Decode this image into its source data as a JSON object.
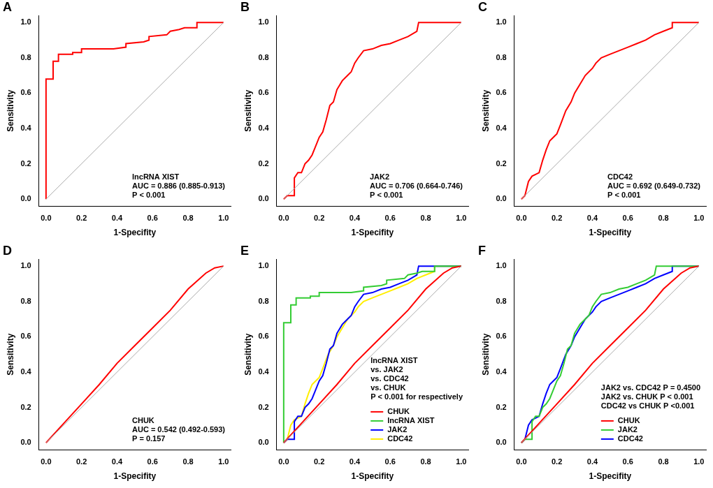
{
  "chart_data": [
    {
      "type": "line",
      "title": "A",
      "x_label": "1-Specifity",
      "y_label": "Sensitivity",
      "xlim": [
        -0.04,
        1.04
      ],
      "ylim": [
        -0.04,
        1.04
      ],
      "xticks": [
        {
          "value": 0,
          "label": "0.0"
        },
        0.2,
        0.4,
        0.6,
        0.8,
        {
          "value": 1,
          "label": "1.0"
        }
      ],
      "yticks": [
        {
          "value": 0,
          "label": "0.0"
        },
        0.2,
        0.4,
        0.6,
        0.8,
        {
          "value": 1,
          "label": "1.0"
        }
      ],
      "grid": false,
      "reference_line": {
        "x": [
          0,
          1
        ],
        "values": [
          0,
          1
        ],
        "color": "#aaaaaa"
      },
      "x": [
        0,
        0,
        0.04,
        0.04,
        0.07,
        0.07,
        0.15,
        0.15,
        0.2,
        0.2,
        0.38,
        0.45,
        0.45,
        0.55,
        0.58,
        0.58,
        0.68,
        0.7,
        0.75,
        0.78,
        0.85,
        0.85,
        1
      ],
      "values": [
        0,
        0.68,
        0.68,
        0.78,
        0.78,
        0.82,
        0.82,
        0.83,
        0.83,
        0.85,
        0.85,
        0.86,
        0.88,
        0.89,
        0.9,
        0.92,
        0.93,
        0.95,
        0.96,
        0.97,
        0.97,
        1,
        1
      ],
      "color": "#ff0000",
      "annotations": [
        "lncRNA XIST",
        "AUC = 0.886 (0.885-0.913)",
        "P < 0.001"
      ]
    },
    {
      "type": "line",
      "title": "B",
      "x_label": "1-Specifity",
      "y_label": "Sensitivity",
      "xlim": [
        -0.04,
        1.04
      ],
      "ylim": [
        -0.04,
        1.04
      ],
      "xticks": [
        {
          "value": 0,
          "label": "0.0"
        },
        0.2,
        0.4,
        0.6,
        0.8,
        {
          "value": 1,
          "label": "1.0"
        }
      ],
      "yticks": [
        {
          "value": 0,
          "label": "0.0"
        },
        0.2,
        0.4,
        0.6,
        0.8,
        {
          "value": 1,
          "label": "1.0"
        }
      ],
      "grid": false,
      "reference_line": {
        "x": [
          0,
          1
        ],
        "values": [
          0,
          1
        ],
        "color": "#aaaaaa"
      },
      "x": [
        0,
        0.02,
        0.06,
        0.06,
        0.08,
        0.1,
        0.12,
        0.14,
        0.16,
        0.18,
        0.2,
        0.22,
        0.24,
        0.26,
        0.28,
        0.3,
        0.33,
        0.36,
        0.38,
        0.4,
        0.42,
        0.45,
        0.5,
        0.55,
        0.6,
        0.65,
        0.7,
        0.75,
        0.76,
        1
      ],
      "values": [
        0,
        0.02,
        0.02,
        0.12,
        0.15,
        0.15,
        0.2,
        0.22,
        0.25,
        0.3,
        0.35,
        0.38,
        0.45,
        0.53,
        0.55,
        0.62,
        0.67,
        0.7,
        0.72,
        0.77,
        0.8,
        0.84,
        0.85,
        0.87,
        0.88,
        0.9,
        0.92,
        0.95,
        1,
        1
      ],
      "color": "#ff0000",
      "annotations": [
        "JAK2",
        "AUC = 0.706 (0.664-0.746)",
        "P < 0.001"
      ]
    },
    {
      "type": "line",
      "title": "C",
      "x_label": "1-Specifity",
      "y_label": "Sensitivity",
      "xlim": [
        -0.04,
        1.04
      ],
      "ylim": [
        -0.04,
        1.04
      ],
      "xticks": [
        {
          "value": 0,
          "label": "0.0"
        },
        0.2,
        0.4,
        0.6,
        0.8,
        {
          "value": 1,
          "label": "1.0"
        }
      ],
      "yticks": [
        {
          "value": 0,
          "label": "0.0"
        },
        0.2,
        0.4,
        0.6,
        0.8,
        {
          "value": 1,
          "label": "1.0"
        }
      ],
      "grid": false,
      "reference_line": {
        "x": [
          0,
          1
        ],
        "values": [
          0,
          1
        ],
        "color": "#aaaaaa"
      },
      "x": [
        0,
        0.02,
        0.04,
        0.06,
        0.1,
        0.12,
        0.14,
        0.16,
        0.18,
        0.2,
        0.22,
        0.25,
        0.28,
        0.3,
        0.33,
        0.36,
        0.4,
        0.42,
        0.45,
        0.5,
        0.55,
        0.6,
        0.65,
        0.7,
        0.75,
        0.8,
        0.85,
        0.85,
        1
      ],
      "values": [
        0,
        0.02,
        0.1,
        0.13,
        0.15,
        0.22,
        0.28,
        0.33,
        0.35,
        0.37,
        0.42,
        0.5,
        0.55,
        0.6,
        0.65,
        0.7,
        0.74,
        0.77,
        0.8,
        0.82,
        0.84,
        0.86,
        0.88,
        0.9,
        0.93,
        0.95,
        0.97,
        1,
        1
      ],
      "color": "#ff0000",
      "annotations": [
        "CDC42",
        "AUC = 0.692 (0.649-0.732)",
        "P < 0.001"
      ]
    },
    {
      "type": "line",
      "title": "D",
      "x_label": "1-Specifity",
      "y_label": "Sensitivity",
      "xlim": [
        -0.04,
        1.04
      ],
      "ylim": [
        -0.04,
        1.04
      ],
      "xticks": [
        {
          "value": 0,
          "label": "0.0"
        },
        0.2,
        0.4,
        0.6,
        0.8,
        {
          "value": 1,
          "label": "1.0"
        }
      ],
      "yticks": [
        {
          "value": 0,
          "label": "0.0"
        },
        0.2,
        0.4,
        0.6,
        0.8,
        {
          "value": 1,
          "label": "1.0"
        }
      ],
      "grid": false,
      "reference_line": {
        "x": [
          0,
          1
        ],
        "values": [
          0,
          1
        ],
        "color": "#aaaaaa"
      },
      "x": [
        0,
        0.1,
        0.2,
        0.3,
        0.4,
        0.5,
        0.6,
        0.7,
        0.8,
        0.9,
        0.95,
        1
      ],
      "values": [
        0,
        0.11,
        0.22,
        0.33,
        0.45,
        0.55,
        0.65,
        0.75,
        0.87,
        0.96,
        0.99,
        1
      ],
      "color": "#ff0000",
      "annotations": [
        "CHUK",
        "AUC = 0.542 (0.492-0.593)",
        "P = 0.157"
      ]
    },
    {
      "type": "line",
      "title": "E",
      "x_label": "1-Specifity",
      "y_label": "Sensitivity",
      "xlim": [
        -0.04,
        1.04
      ],
      "ylim": [
        -0.04,
        1.04
      ],
      "xticks": [
        {
          "value": 0,
          "label": "0.0"
        },
        0.2,
        0.4,
        0.6,
        0.8,
        {
          "value": 1,
          "label": "1.0"
        }
      ],
      "yticks": [
        {
          "value": 0,
          "label": "0.0"
        },
        0.2,
        0.4,
        0.6,
        0.8,
        {
          "value": 1,
          "label": "1.0"
        }
      ],
      "grid": false,
      "legend": "lower right",
      "reference_line": {
        "x": [
          0,
          1
        ],
        "values": [
          0,
          1
        ],
        "color": "#aaaaaa"
      },
      "annotations": [
        "lncRNA XIST",
        "vs. JAK2",
        "vs. CDC42",
        "vs. CHUK",
        "P < 0.001 for respectively"
      ],
      "series": [
        {
          "name": "CHUK",
          "color": "#ff0000",
          "x": [
            0,
            0.1,
            0.2,
            0.3,
            0.4,
            0.5,
            0.6,
            0.7,
            0.8,
            0.9,
            0.95,
            1
          ],
          "values": [
            0,
            0.11,
            0.22,
            0.33,
            0.45,
            0.55,
            0.65,
            0.75,
            0.87,
            0.96,
            0.99,
            1
          ]
        },
        {
          "name": "lncRNA XIST",
          "color": "#33cc33",
          "x": [
            0,
            0,
            0.04,
            0.04,
            0.07,
            0.07,
            0.15,
            0.15,
            0.2,
            0.2,
            0.38,
            0.45,
            0.45,
            0.55,
            0.58,
            0.58,
            0.68,
            0.7,
            0.75,
            0.78,
            0.85,
            0.85,
            1
          ],
          "values": [
            0,
            0.68,
            0.68,
            0.78,
            0.78,
            0.82,
            0.82,
            0.83,
            0.83,
            0.85,
            0.85,
            0.86,
            0.88,
            0.89,
            0.9,
            0.92,
            0.93,
            0.95,
            0.96,
            0.97,
            0.97,
            1,
            1
          ]
        },
        {
          "name": "JAK2",
          "color": "#0000ff",
          "x": [
            0,
            0.02,
            0.06,
            0.06,
            0.08,
            0.1,
            0.12,
            0.14,
            0.16,
            0.18,
            0.2,
            0.22,
            0.24,
            0.26,
            0.28,
            0.3,
            0.33,
            0.36,
            0.38,
            0.4,
            0.42,
            0.45,
            0.5,
            0.55,
            0.6,
            0.65,
            0.7,
            0.75,
            0.76,
            1
          ],
          "values": [
            0,
            0.02,
            0.02,
            0.12,
            0.15,
            0.15,
            0.2,
            0.22,
            0.25,
            0.3,
            0.35,
            0.38,
            0.45,
            0.53,
            0.55,
            0.62,
            0.67,
            0.7,
            0.72,
            0.77,
            0.8,
            0.84,
            0.85,
            0.87,
            0.88,
            0.9,
            0.92,
            0.95,
            1,
            1
          ]
        },
        {
          "name": "CDC42",
          "color": "#ffee00",
          "x": [
            0,
            0.02,
            0.04,
            0.06,
            0.1,
            0.12,
            0.14,
            0.16,
            0.18,
            0.2,
            0.22,
            0.25,
            0.28,
            0.3,
            0.33,
            0.36,
            0.4,
            0.42,
            0.45,
            0.5,
            0.55,
            0.6,
            0.65,
            0.7,
            0.75,
            0.8,
            0.85,
            0.85,
            1
          ],
          "values": [
            0,
            0.02,
            0.1,
            0.13,
            0.15,
            0.22,
            0.28,
            0.33,
            0.35,
            0.37,
            0.42,
            0.5,
            0.55,
            0.6,
            0.65,
            0.7,
            0.74,
            0.77,
            0.8,
            0.82,
            0.84,
            0.86,
            0.88,
            0.9,
            0.93,
            0.95,
            0.97,
            1,
            1
          ]
        }
      ]
    },
    {
      "type": "line",
      "title": "F",
      "x_label": "1-Specifity",
      "y_label": "Sensitivity",
      "xlim": [
        -0.04,
        1.04
      ],
      "ylim": [
        -0.04,
        1.04
      ],
      "xticks": [
        {
          "value": 0,
          "label": "0.0"
        },
        0.2,
        0.4,
        0.6,
        0.8,
        {
          "value": 1,
          "label": "1.0"
        }
      ],
      "yticks": [
        {
          "value": 0,
          "label": "0.0"
        },
        0.2,
        0.4,
        0.6,
        0.8,
        {
          "value": 1,
          "label": "1.0"
        }
      ],
      "grid": false,
      "legend": "lower right",
      "reference_line": {
        "x": [
          0,
          1
        ],
        "values": [
          0,
          1
        ],
        "color": "#aaaaaa"
      },
      "annotations": [
        "JAK2 vs. CDC42 P = 0.4500",
        "JAK2 vs. CHUK P < 0.001",
        "CDC42 vs CHUK P <0.001"
      ],
      "series": [
        {
          "name": "CHUK",
          "color": "#ff0000",
          "x": [
            0,
            0.1,
            0.2,
            0.3,
            0.4,
            0.5,
            0.6,
            0.7,
            0.8,
            0.9,
            0.95,
            1
          ],
          "values": [
            0,
            0.11,
            0.22,
            0.33,
            0.45,
            0.55,
            0.65,
            0.75,
            0.87,
            0.96,
            0.99,
            1
          ]
        },
        {
          "name": "JAK2",
          "color": "#33cc33",
          "x": [
            0,
            0.02,
            0.06,
            0.06,
            0.08,
            0.1,
            0.12,
            0.14,
            0.16,
            0.18,
            0.2,
            0.22,
            0.24,
            0.26,
            0.28,
            0.3,
            0.33,
            0.36,
            0.38,
            0.4,
            0.42,
            0.45,
            0.5,
            0.55,
            0.6,
            0.65,
            0.7,
            0.75,
            0.76,
            1
          ],
          "values": [
            0,
            0.02,
            0.02,
            0.12,
            0.15,
            0.15,
            0.2,
            0.22,
            0.25,
            0.3,
            0.35,
            0.38,
            0.45,
            0.53,
            0.55,
            0.62,
            0.67,
            0.7,
            0.72,
            0.77,
            0.8,
            0.84,
            0.85,
            0.87,
            0.88,
            0.9,
            0.92,
            0.95,
            1,
            1
          ]
        },
        {
          "name": "CDC42",
          "color": "#0000ff",
          "x": [
            0,
            0.02,
            0.04,
            0.06,
            0.1,
            0.12,
            0.14,
            0.16,
            0.18,
            0.2,
            0.22,
            0.25,
            0.28,
            0.3,
            0.33,
            0.36,
            0.4,
            0.42,
            0.45,
            0.5,
            0.55,
            0.6,
            0.65,
            0.7,
            0.75,
            0.8,
            0.85,
            0.85,
            1
          ],
          "values": [
            0,
            0.02,
            0.1,
            0.13,
            0.15,
            0.22,
            0.28,
            0.33,
            0.35,
            0.37,
            0.42,
            0.5,
            0.55,
            0.6,
            0.65,
            0.7,
            0.74,
            0.77,
            0.8,
            0.82,
            0.84,
            0.86,
            0.88,
            0.9,
            0.93,
            0.95,
            0.97,
            1,
            1
          ]
        }
      ]
    }
  ]
}
